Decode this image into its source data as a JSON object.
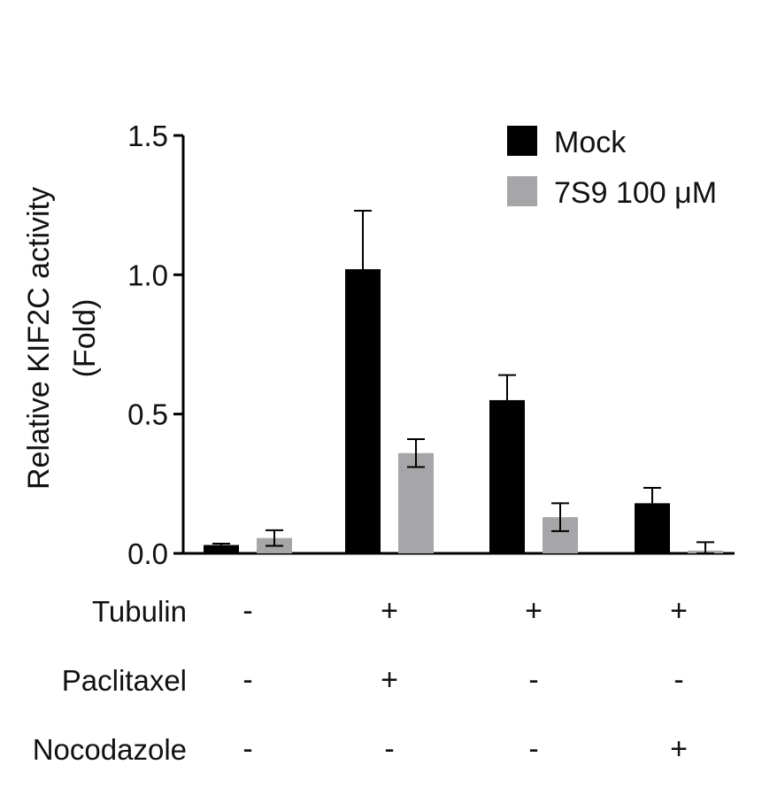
{
  "chart_data": {
    "type": "bar",
    "title": "",
    "ylabel_line1": "Relative KIF2C activity",
    "ylabel_line2": "(Fold)",
    "ylim": [
      0,
      1.5
    ],
    "yticks": [
      {
        "value": 0,
        "label": "0.0"
      },
      {
        "value": 0.5,
        "label": "0.5"
      },
      {
        "value": 1.0,
        "label": "1.0"
      },
      {
        "value": 1.5,
        "label": "1.5"
      }
    ],
    "grid": false,
    "legend_position": "top-right",
    "groups": 4,
    "series": [
      {
        "name": "Mock",
        "color": "#000000",
        "values": [
          0.03,
          1.02,
          0.55,
          0.18
        ],
        "errors": [
          0.005,
          0.21,
          0.09,
          0.055
        ]
      },
      {
        "name": "7S9 100 μM",
        "color": "#a6a6a8",
        "values": [
          0.055,
          0.36,
          0.13,
          0.01
        ],
        "errors": [
          0.028,
          0.05,
          0.05,
          0.03
        ]
      }
    ],
    "treatments": [
      {
        "label": "Tubulin",
        "signs": [
          "-",
          "+",
          "+",
          "+"
        ]
      },
      {
        "label": "Paclitaxel",
        "signs": [
          "-",
          "+",
          "-",
          "-"
        ]
      },
      {
        "label": "Nocodazole",
        "signs": [
          "-",
          "-",
          "-",
          "+"
        ]
      }
    ]
  }
}
